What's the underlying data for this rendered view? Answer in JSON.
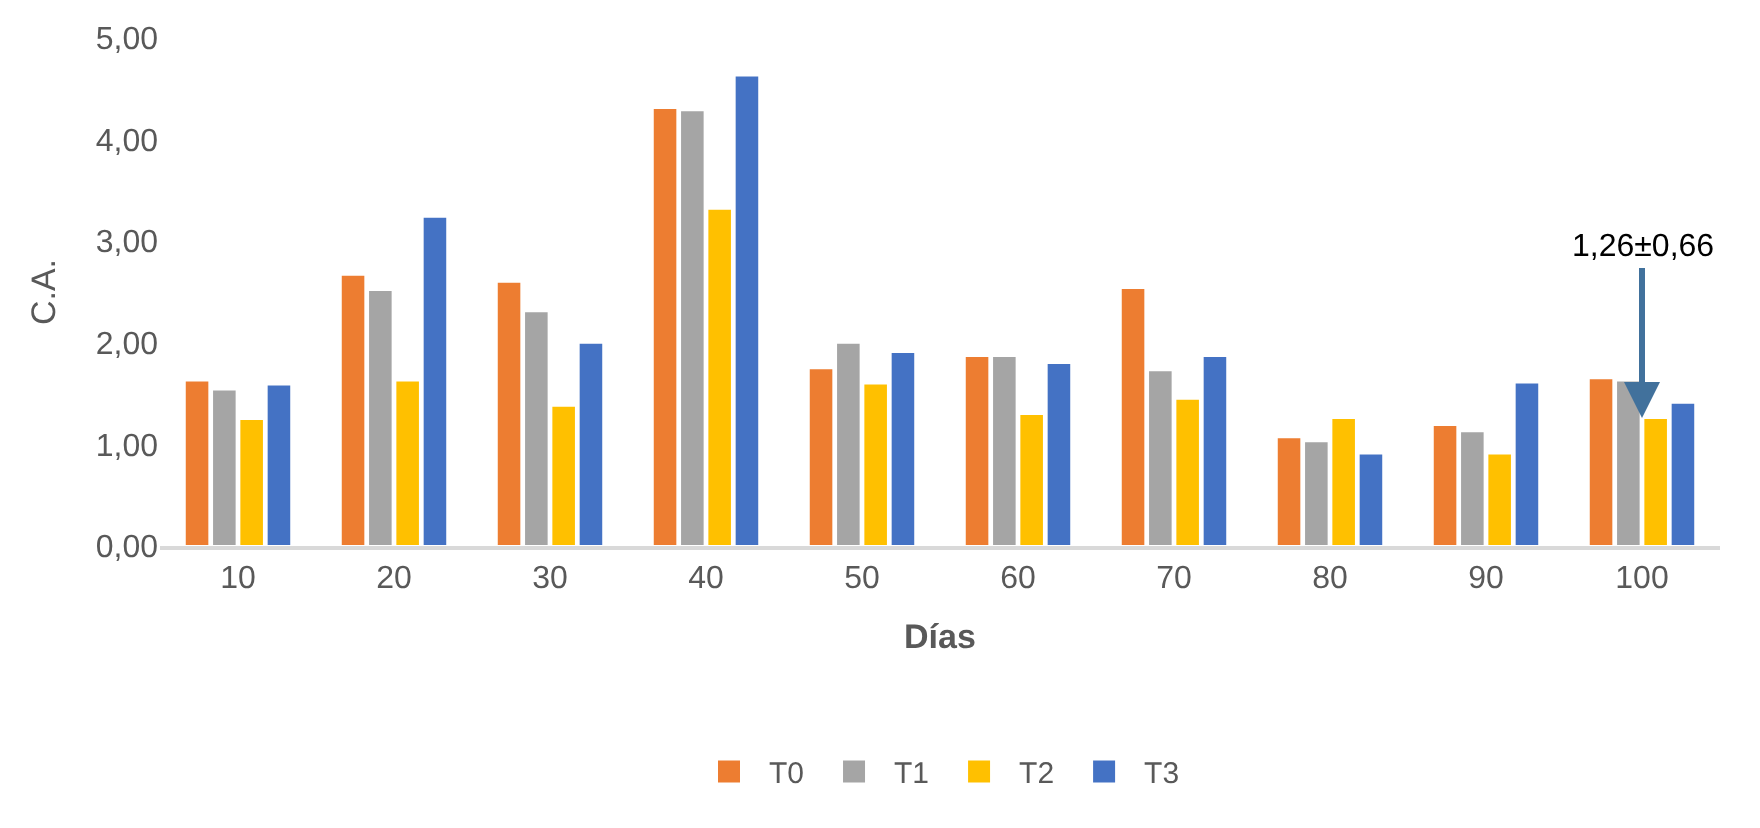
{
  "chart_data": {
    "type": "bar",
    "xlabel": "Días",
    "ylabel": "C.A.",
    "categories": [
      "10",
      "20",
      "30",
      "40",
      "50",
      "60",
      "70",
      "80",
      "90",
      "100"
    ],
    "series": [
      {
        "name": "T0",
        "color": "#ed7d31",
        "values": [
          1.63,
          2.67,
          2.6,
          4.31,
          1.75,
          1.87,
          2.54,
          1.07,
          1.19,
          1.65
        ]
      },
      {
        "name": "T1",
        "color": "#a5a5a5",
        "values": [
          1.54,
          2.52,
          2.31,
          4.29,
          2.0,
          1.87,
          1.73,
          1.03,
          1.13,
          1.63
        ]
      },
      {
        "name": "T2",
        "color": "#ffc000",
        "values": [
          1.25,
          1.63,
          1.38,
          3.32,
          1.6,
          1.3,
          1.45,
          1.26,
          0.91,
          1.26
        ]
      },
      {
        "name": "T3",
        "color": "#4472c4",
        "values": [
          1.59,
          3.24,
          2.0,
          4.63,
          1.91,
          1.8,
          1.87,
          0.91,
          1.61,
          1.41
        ]
      }
    ],
    "ylim": [
      0,
      5
    ],
    "yticks": [
      {
        "value": 0,
        "label": "0,00"
      },
      {
        "value": 1,
        "label": "1,00"
      },
      {
        "value": 2,
        "label": "2,00"
      },
      {
        "value": 3,
        "label": "3,00"
      },
      {
        "value": 4,
        "label": "4,00"
      },
      {
        "value": 5,
        "label": "5,00"
      }
    ],
    "grid": false,
    "legend": "bottom",
    "annotations": [
      {
        "text": "1,26±0,66",
        "x": "100",
        "y": 1.26
      }
    ]
  }
}
